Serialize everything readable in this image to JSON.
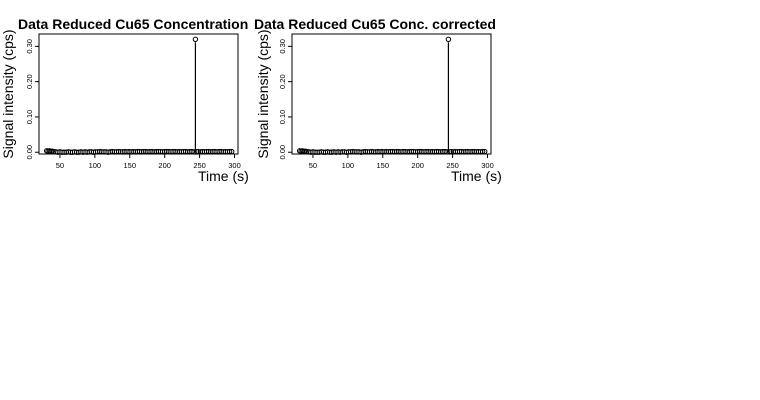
{
  "chart_data": [
    {
      "type": "scatter",
      "title": "Data Reduced Cu65 Concentration",
      "xlabel": "Time (s)",
      "ylabel": "Signal intensity (cps)",
      "xlim": [
        20,
        305
      ],
      "ylim": [
        -0.005,
        0.335
      ],
      "x_ticks": [
        50,
        100,
        150,
        200,
        250,
        300
      ],
      "x_tick_labels": [
        "50",
        "100",
        "150",
        "200",
        "250",
        "300"
      ],
      "y_ticks": [
        0.0,
        0.1,
        0.2,
        0.3
      ],
      "y_tick_labels": [
        "0.00",
        "0.10",
        "0.20",
        "0.30"
      ],
      "grid": false,
      "legend": "none",
      "series": [
        {
          "x": [
            31,
            33,
            35,
            37,
            39,
            41,
            44,
            47,
            50,
            53,
            56,
            59,
            62,
            65,
            68,
            71,
            74,
            77,
            80,
            83,
            86,
            89,
            92,
            95,
            98,
            101,
            104,
            107,
            110,
            113,
            116,
            119,
            122,
            125,
            128,
            131,
            134,
            137,
            140,
            143,
            146,
            149,
            152,
            155,
            158,
            161,
            164,
            167,
            170,
            173,
            176,
            179,
            182,
            185,
            188,
            191,
            194,
            197,
            200,
            203,
            206,
            209,
            212,
            215,
            218,
            221,
            224,
            227,
            230,
            233,
            236,
            239,
            242,
            244,
            246,
            248,
            251,
            254,
            257,
            260,
            263,
            266,
            269,
            272,
            275,
            278,
            281,
            284,
            287,
            290,
            293,
            296
          ],
          "y": [
            0.004,
            0.003,
            0.004,
            0.002,
            0.003,
            0.002,
            0.001,
            0.0,
            0.001,
            0.0,
            0.0,
            0.0,
            0.001,
            0.0,
            0.0,
            0.001,
            0.0,
            0.0,
            0.001,
            0.0,
            0.001,
            0.0,
            0.001,
            0.001,
            0.0,
            0.001,
            0.001,
            0.002,
            0.001,
            0.001,
            0.001,
            0.0,
            0.001,
            0.002,
            0.001,
            0.001,
            0.002,
            0.001,
            0.001,
            0.002,
            0.001,
            0.002,
            0.001,
            0.002,
            0.001,
            0.002,
            0.002,
            0.001,
            0.002,
            0.002,
            0.001,
            0.002,
            0.002,
            0.001,
            0.002,
            0.002,
            0.002,
            0.001,
            0.002,
            0.002,
            0.002,
            0.001,
            0.002,
            0.002,
            0.001,
            0.002,
            0.001,
            0.002,
            0.002,
            0.001,
            0.002,
            0.002,
            0.001,
            0.32,
            0.001,
            0.002,
            0.001,
            0.002,
            0.001,
            0.002,
            0.002,
            0.001,
            0.002,
            0.002,
            0.001,
            0.002,
            0.002,
            0.001,
            0.002,
            0.001,
            0.002,
            0.002
          ]
        }
      ]
    },
    {
      "type": "scatter",
      "title": "Data Reduced Cu65 Conc. corrected",
      "xlabel": "Time (s)",
      "ylabel": "Signal intensity (cps)",
      "xlim": [
        20,
        305
      ],
      "ylim": [
        -0.005,
        0.335
      ],
      "x_ticks": [
        50,
        100,
        150,
        200,
        250,
        300
      ],
      "x_tick_labels": [
        "50",
        "100",
        "150",
        "200",
        "250",
        "300"
      ],
      "y_ticks": [
        0.0,
        0.1,
        0.2,
        0.3
      ],
      "y_tick_labels": [
        "0.00",
        "0.10",
        "0.20",
        "0.30"
      ],
      "grid": false,
      "legend": "none",
      "series": [
        {
          "x": [
            31,
            33,
            35,
            37,
            39,
            41,
            44,
            47,
            50,
            53,
            56,
            59,
            62,
            65,
            68,
            71,
            74,
            77,
            80,
            83,
            86,
            89,
            92,
            95,
            98,
            101,
            104,
            107,
            110,
            113,
            116,
            119,
            122,
            125,
            128,
            131,
            134,
            137,
            140,
            143,
            146,
            149,
            152,
            155,
            158,
            161,
            164,
            167,
            170,
            173,
            176,
            179,
            182,
            185,
            188,
            191,
            194,
            197,
            200,
            203,
            206,
            209,
            212,
            215,
            218,
            221,
            224,
            227,
            230,
            233,
            236,
            239,
            242,
            244,
            246,
            248,
            251,
            254,
            257,
            260,
            263,
            266,
            269,
            272,
            275,
            278,
            281,
            284,
            287,
            290,
            293,
            296
          ],
          "y": [
            0.004,
            0.003,
            0.004,
            0.002,
            0.003,
            0.002,
            0.001,
            0.0,
            0.001,
            0.0,
            0.0,
            0.0,
            0.001,
            0.0,
            0.0,
            0.001,
            0.0,
            0.0,
            0.001,
            0.0,
            0.001,
            0.0,
            0.001,
            0.001,
            0.0,
            0.001,
            0.001,
            0.002,
            0.001,
            0.001,
            0.001,
            0.0,
            0.001,
            0.002,
            0.001,
            0.001,
            0.002,
            0.001,
            0.001,
            0.002,
            0.001,
            0.002,
            0.001,
            0.002,
            0.001,
            0.002,
            0.002,
            0.001,
            0.002,
            0.002,
            0.001,
            0.002,
            0.002,
            0.001,
            0.002,
            0.002,
            0.002,
            0.001,
            0.002,
            0.002,
            0.002,
            0.001,
            0.002,
            0.002,
            0.001,
            0.002,
            0.001,
            0.002,
            0.002,
            0.001,
            0.002,
            0.002,
            0.001,
            0.32,
            0.001,
            0.002,
            0.001,
            0.002,
            0.001,
            0.002,
            0.002,
            0.001,
            0.002,
            0.002,
            0.001,
            0.002,
            0.002,
            0.001,
            0.002,
            0.001,
            0.002,
            0.002
          ]
        }
      ]
    }
  ]
}
